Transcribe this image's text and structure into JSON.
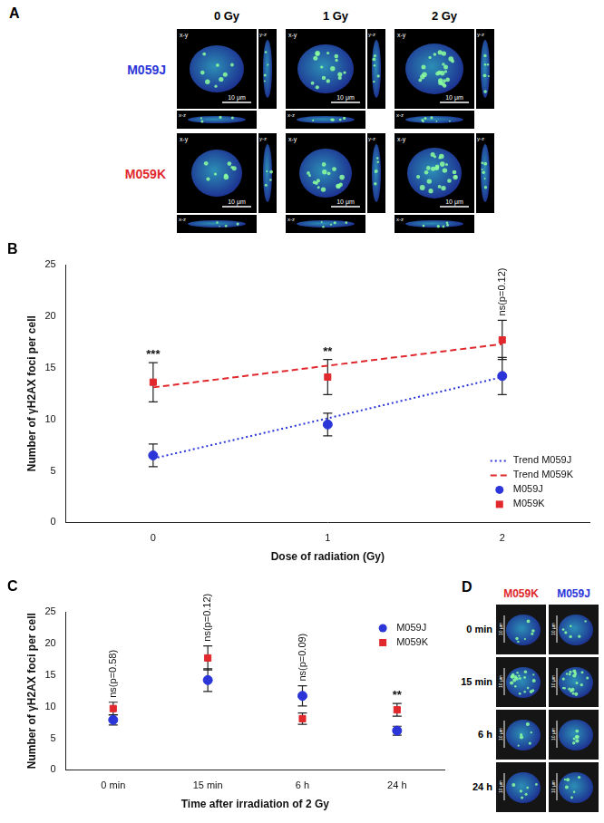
{
  "image_panels": [
    {
      "panel": "A",
      "columns": [
        "0 Gy",
        "1 Gy",
        "2 Gy"
      ],
      "rows": [
        {
          "label": "M059J",
          "color": "#2b35d8"
        },
        {
          "label": "M059K",
          "color": "#e0282d"
        }
      ],
      "view_labels": [
        "x-y",
        "y-z",
        "x-z"
      ],
      "scale_bar": "10 μm"
    },
    {
      "panel": "D",
      "columns": [
        {
          "label": "M059K",
          "color": "#e0282d"
        },
        {
          "label": "M059J",
          "color": "#2b35d8"
        }
      ],
      "rows": [
        "0 min",
        "15 min",
        "6 h",
        "24 h"
      ],
      "scale_bar": "10 μm"
    }
  ],
  "chart_data": [
    {
      "panel": "B",
      "type": "scatter",
      "x_label": "Dose of radiation (Gy)",
      "y_label": "Number of γH2AX foci per cell",
      "categories": [
        "0",
        "1",
        "2"
      ],
      "ylim": [
        0,
        25
      ],
      "yticks": [
        0,
        5,
        10,
        15,
        20,
        25
      ],
      "grid": false,
      "legend": "lower right",
      "series": [
        {
          "name": "Trend M059J",
          "type": "line",
          "line_style": "dotted",
          "color": "#2b35d8",
          "values": [
            6.2,
            10.1,
            14.1
          ]
        },
        {
          "name": "Trend M059K",
          "type": "line",
          "line_style": "dashed",
          "color": "#e0282d",
          "values": [
            13.1,
            15.2,
            17.3
          ]
        },
        {
          "name": "M059J",
          "type": "scatter",
          "marker": "circle",
          "color": "#2b35d8",
          "values": [
            6.5,
            9.5,
            14.2
          ],
          "errors": [
            1.1,
            1.1,
            1.8
          ]
        },
        {
          "name": "M059K",
          "type": "scatter",
          "marker": "square",
          "color": "#e0282d",
          "values": [
            13.6,
            14.1,
            17.7
          ],
          "errors": [
            1.9,
            1.7,
            1.9
          ]
        }
      ],
      "annotations": [
        {
          "category": "0",
          "text": "***"
        },
        {
          "category": "1",
          "text": "**"
        },
        {
          "category": "2",
          "text": "ns(p=0.12)"
        }
      ]
    },
    {
      "panel": "C",
      "type": "scatter",
      "x_label": "Time after irradiation of 2 Gy",
      "y_label": "Number of γH2AX foci per cell",
      "categories": [
        "0 min",
        "15 min",
        "6 h",
        "24 h"
      ],
      "ylim": [
        0,
        25
      ],
      "yticks": [
        0,
        5,
        10,
        15,
        20,
        25
      ],
      "grid": false,
      "legend": "upper right",
      "series": [
        {
          "name": "M059J",
          "type": "scatter",
          "marker": "circle",
          "color": "#2b35d8",
          "values": [
            7.9,
            14.2,
            11.7,
            6.2
          ],
          "errors": [
            0.8,
            1.8,
            1.6,
            0.7
          ]
        },
        {
          "name": "M059K",
          "type": "scatter",
          "marker": "square",
          "color": "#e0282d",
          "values": [
            9.7,
            17.7,
            8.1,
            9.5
          ],
          "errors": [
            1.0,
            1.9,
            0.9,
            1.0
          ]
        }
      ],
      "annotations": [
        {
          "category": "0 min",
          "text": "ns(p=0.58)"
        },
        {
          "category": "15 min",
          "text": "ns(p=0.12)"
        },
        {
          "category": "6 h",
          "text": "ns(p=0.09)"
        },
        {
          "category": "24 h",
          "text": "**"
        }
      ]
    }
  ]
}
